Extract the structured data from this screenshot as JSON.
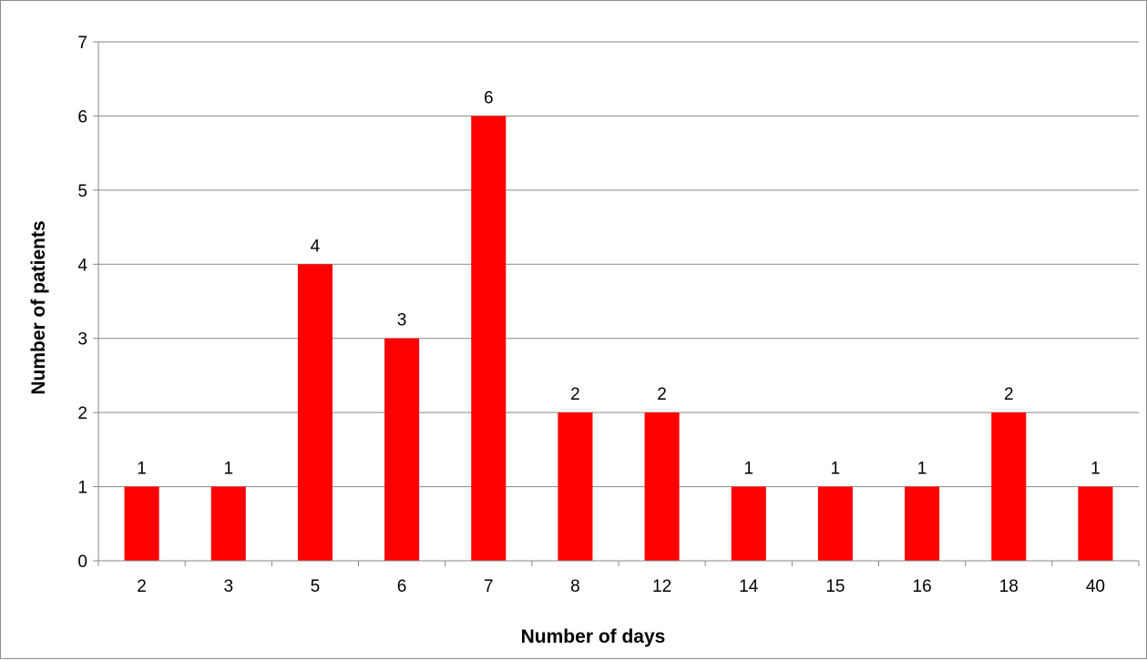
{
  "chart_data": {
    "type": "bar",
    "title": "",
    "xlabel": "Number of days",
    "ylabel": "Number of patients",
    "categories": [
      "2",
      "3",
      "5",
      "6",
      "7",
      "8",
      "12",
      "14",
      "15",
      "16",
      "18",
      "40"
    ],
    "values": [
      1,
      1,
      4,
      3,
      6,
      2,
      2,
      1,
      1,
      1,
      2,
      1
    ],
    "ylim": [
      0,
      7
    ],
    "yticks": [
      0,
      1,
      2,
      3,
      4,
      5,
      6,
      7
    ],
    "grid": true,
    "legend": "none",
    "data_labels": true,
    "bar_color": "#ff0000",
    "grid_color": "#878787"
  }
}
